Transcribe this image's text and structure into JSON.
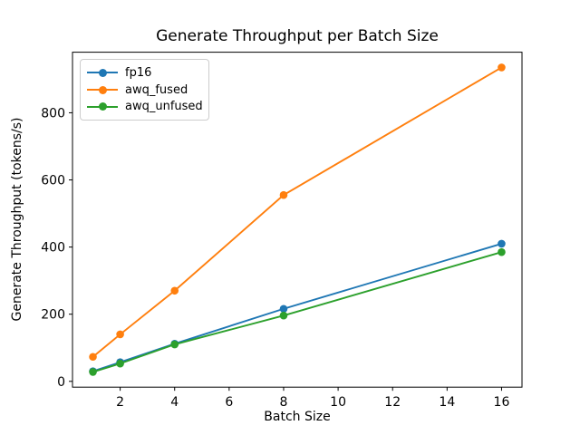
{
  "figure": {
    "background": "#ffffff",
    "frame_color": "#000000"
  },
  "chart_data": {
    "type": "line",
    "title": "Generate Throughput per Batch Size",
    "xlabel": "Batch Size",
    "ylabel": "Generate Throughput (tokens/s)",
    "x": [
      1,
      2,
      4,
      8,
      16
    ],
    "series": [
      {
        "name": "fp16",
        "color": "#1f77b4",
        "values": [
          30,
          57,
          112,
          216,
          410
        ]
      },
      {
        "name": "awq_fused",
        "color": "#ff7f0e",
        "values": [
          73,
          140,
          270,
          555,
          935
        ]
      },
      {
        "name": "awq_unfused",
        "color": "#2ca02c",
        "values": [
          28,
          53,
          110,
          196,
          385
        ]
      }
    ],
    "xticks": [
      2,
      4,
      6,
      8,
      10,
      12,
      14,
      16
    ],
    "yticks": [
      0,
      200,
      400,
      600,
      800
    ],
    "xlim": [
      0.25,
      16.75
    ],
    "ylim": [
      -17.3,
      980.4
    ],
    "grid": false,
    "legend_position": "upper left",
    "marker": "o"
  }
}
